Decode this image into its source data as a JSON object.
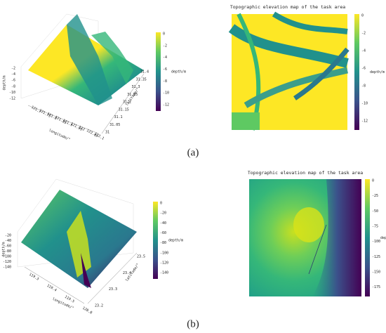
{
  "figure": {
    "panels": [
      {
        "label": "(a)",
        "surface": {
          "zlabel": "depth/m",
          "zticks": [
            "-2",
            "-4",
            "-6",
            "-8",
            "-10",
            "-12"
          ],
          "xlabel": "longitude/°",
          "xticks": [
            "121.7",
            "121.75",
            "121.8",
            "121.85",
            "121.9",
            "121.95",
            "122",
            "122.05",
            "122.1"
          ],
          "ylabel": "latitude/°",
          "yticks": [
            "31",
            "31.05",
            "31.1",
            "31.15",
            "31.2",
            "31.25",
            "31.3",
            "31.35",
            "31.4"
          ],
          "colorbar": {
            "label": "depth/m",
            "ticks": [
              "0",
              "-2",
              "-4",
              "-6",
              "-8",
              "-10",
              "-12"
            ]
          }
        },
        "map": {
          "title": "Topographic elevation map of the task area",
          "colorbar": {
            "label": "depth/m",
            "ticks": [
              "0",
              "-2",
              "-4",
              "-6",
              "-8",
              "-10",
              "-12"
            ]
          }
        }
      },
      {
        "label": "(b)",
        "surface": {
          "zlabel": "depth/m",
          "zticks": [
            "-20",
            "-40",
            "-60",
            "-80",
            "-100",
            "-120",
            "-140"
          ],
          "xlabel": "longitude/°",
          "xticks": [
            "119.3",
            "119.4",
            "119.5",
            "120.0"
          ],
          "ylabel": "latitude/°",
          "yticks": [
            "23.2",
            "23.3",
            "23.4",
            "23.5"
          ],
          "colorbar": {
            "label": "depth/m",
            "ticks": [
              "0",
              "-20",
              "-40",
              "-60",
              "-80",
              "-100",
              "-120",
              "-140"
            ]
          }
        },
        "map": {
          "title": "Topographic elevation map of the task area",
          "colorbar": {
            "label": "depth/m",
            "ticks": [
              "0",
              "-25",
              "-50",
              "-75",
              "-100",
              "-125",
              "-150",
              "-175"
            ]
          }
        }
      }
    ]
  }
}
